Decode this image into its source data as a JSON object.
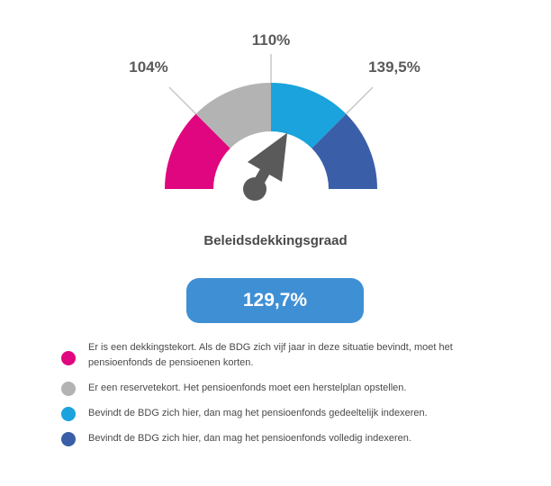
{
  "chart_data": {
    "type": "gauge",
    "title": "Beleidsdekkingsgraad",
    "value": 129.7,
    "value_label": "129,7%",
    "thresholds": [
      {
        "value": 104,
        "label": "104%"
      },
      {
        "value": 110,
        "label": "110%"
      },
      {
        "value": 139.5,
        "label": "139,5%"
      }
    ],
    "segments": [
      {
        "color": "#e0067f"
      },
      {
        "color": "#b3b3b3"
      },
      {
        "color": "#1aa3dc"
      },
      {
        "color": "#3a5fa8"
      }
    ],
    "needle_color": "#5a5a5a",
    "value_box_color": "#3f8fd5"
  },
  "legend": [
    {
      "color": "#e0067f",
      "text": "Er is een dekkingstekort. Als de BDG zich vijf jaar in deze situatie bevindt, moet het pensioenfonds de pensioenen korten."
    },
    {
      "color": "#b3b3b3",
      "text": "Er een reservetekort. Het pensioenfonds moet een herstelplan opstellen."
    },
    {
      "color": "#1aa3dc",
      "text": "Bevindt de BDG zich hier, dan mag het pensioenfonds gedeeltelijk indexeren."
    },
    {
      "color": "#3a5fa8",
      "text": "Bevindt de BDG zich hier, dan mag het pensioenfonds volledig indexeren."
    }
  ]
}
